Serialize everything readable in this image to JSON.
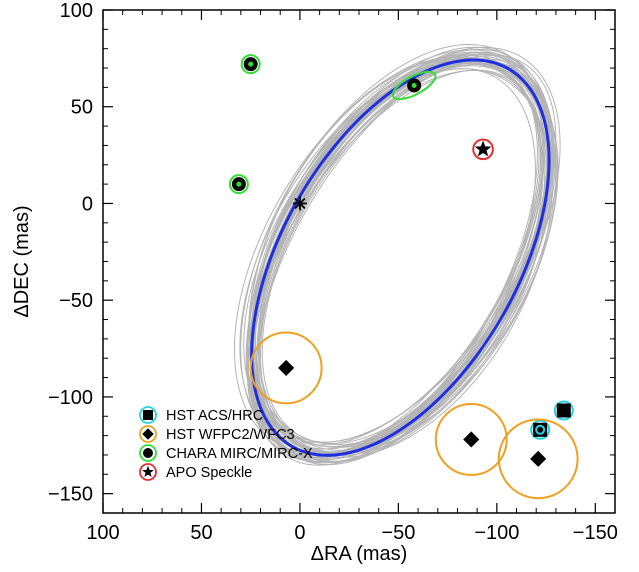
{
  "chart_data": {
    "type": "scatter",
    "xlabel": "ΔRA (mas)",
    "ylabel": "ΔDEC (mas)",
    "xlim": [
      100,
      -160
    ],
    "ylim": [
      -160,
      100
    ],
    "x_reversed": true,
    "x_ticks": [
      100,
      50,
      0,
      -50,
      -100,
      -150
    ],
    "y_ticks": [
      100,
      50,
      0,
      -50,
      -100,
      -150
    ],
    "x_tick_labels": [
      "100",
      "50",
      "0",
      "−50",
      "−100",
      "−150"
    ],
    "y_tick_labels": [
      "100",
      "50",
      "0",
      "−50",
      "−100",
      "−150"
    ],
    "grid": false,
    "legend_position": "bottom-left",
    "primary_star": {
      "x": 0,
      "y": 0,
      "marker": "asterisk"
    },
    "best_fit_orbit": {
      "color": "#1f2fe0",
      "center": [
        -51,
        -28
      ],
      "semi_major": 112,
      "semi_minor": 60,
      "major_axis_angle_deg": 119
    },
    "orbit_ensemble": {
      "color": "#b4b4b4",
      "count": 40
    },
    "series": [
      {
        "name": "HST ACS/HRC",
        "marker": "square",
        "ring_color": "#22d3e6",
        "points": [
          {
            "x": -134,
            "y": -107,
            "err": 4
          },
          {
            "x": -122,
            "y": -117,
            "err": 4
          }
        ]
      },
      {
        "name": "HST WFPC2/WFC3",
        "marker": "diamond",
        "ring_color": "#f0a020",
        "points": [
          {
            "x": 7,
            "y": -85,
            "err": 18
          },
          {
            "x": -87,
            "y": -122,
            "err": 18
          },
          {
            "x": -121,
            "y": -132,
            "err": 20
          }
        ]
      },
      {
        "name": "CHARA MIRC/MIRC-X",
        "marker": "circle",
        "ring_color": "#33dd33",
        "points": [
          {
            "x": 31,
            "y": 10,
            "err": 2
          },
          {
            "x": 25,
            "y": 72,
            "err": 2
          },
          {
            "x": -58,
            "y": 61,
            "err": 12
          }
        ]
      },
      {
        "name": "APO Speckle",
        "marker": "star",
        "ring_color": "#e03030",
        "points": [
          {
            "x": -93,
            "y": 28,
            "err": 5
          }
        ]
      }
    ]
  }
}
